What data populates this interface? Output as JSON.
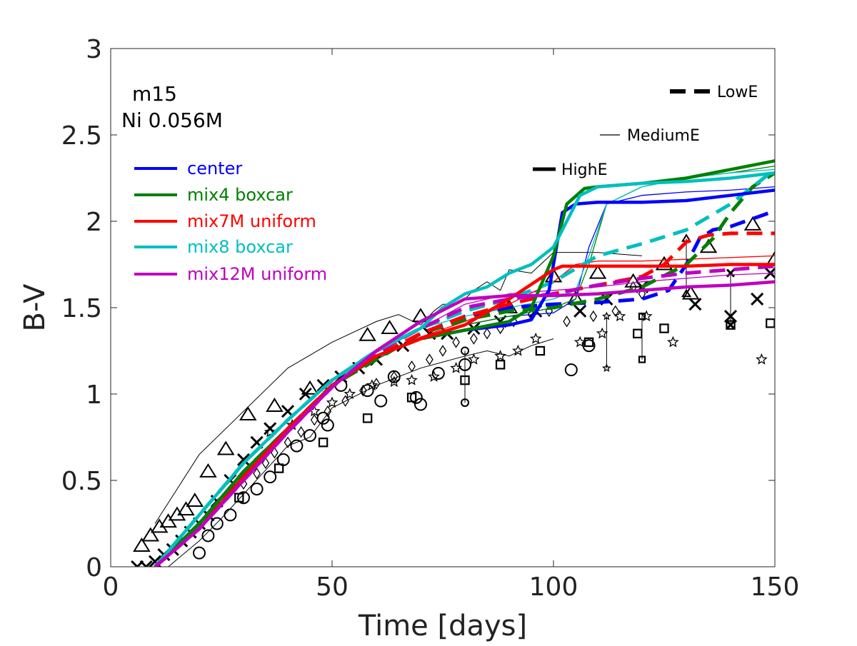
{
  "chart_data": {
    "type": "line",
    "xlabel": "Time [days]",
    "ylabel": "B-V",
    "xlim": [
      0,
      150
    ],
    "ylim": [
      0,
      3
    ],
    "xticks": [
      0,
      50,
      100,
      150
    ],
    "xtick_labels": [
      "0",
      "50",
      "100",
      "150"
    ],
    "yticks": [
      0,
      0.5,
      1,
      1.5,
      2,
      2.5,
      3
    ],
    "ytick_labels": [
      "0",
      "0.5",
      "1",
      "1.5",
      "2",
      "2.5",
      "3"
    ],
    "annotations": [
      "m15",
      "Ni 0.056M"
    ],
    "color_legend": [
      {
        "label": "center",
        "color": "#0000ff"
      },
      {
        "label": "mix4 boxcar",
        "color": "#008000"
      },
      {
        "label": "mix7M uniform",
        "color": "#ff0000"
      },
      {
        "label": "mix8 boxcar",
        "color": "#00bfbf"
      },
      {
        "label": "mix12M uniform",
        "color": "#bf00bf"
      }
    ],
    "style_legend": [
      {
        "label": "LowE",
        "style": "dashed"
      },
      {
        "label": "MediumE",
        "style": "thin"
      },
      {
        "label": "HighE",
        "style": "thick"
      }
    ],
    "series": [
      {
        "name": "center HighE",
        "color": "#0000ff",
        "style": "thick",
        "x": [
          10,
          20,
          30,
          40,
          50,
          60,
          70,
          80,
          90,
          95,
          99,
          102,
          105,
          110,
          120,
          130,
          140,
          150
        ],
        "y": [
          0,
          0.25,
          0.55,
          0.8,
          1.05,
          1.22,
          1.32,
          1.37,
          1.4,
          1.43,
          1.6,
          2.05,
          2.1,
          2.11,
          2.11,
          2.12,
          2.15,
          2.18
        ]
      },
      {
        "name": "center MediumE",
        "color": "#0000ff",
        "style": "thin",
        "x": [
          10,
          20,
          30,
          40,
          50,
          60,
          70,
          80,
          90,
          100,
          105,
          108,
          112,
          120,
          130,
          140,
          150
        ],
        "y": [
          0,
          0.25,
          0.55,
          0.8,
          1.05,
          1.2,
          1.33,
          1.4,
          1.45,
          1.47,
          1.55,
          1.85,
          2.1,
          2.15,
          2.17,
          2.18,
          2.2
        ]
      },
      {
        "name": "center LowE",
        "color": "#0000ff",
        "style": "dashed",
        "x": [
          10,
          20,
          30,
          40,
          50,
          60,
          70,
          80,
          90,
          100,
          110,
          120,
          126,
          130,
          133,
          136,
          140,
          150
        ],
        "y": [
          0,
          0.25,
          0.55,
          0.8,
          1.05,
          1.2,
          1.35,
          1.45,
          1.5,
          1.52,
          1.53,
          1.55,
          1.6,
          1.75,
          1.9,
          1.95,
          1.97,
          2.06
        ]
      },
      {
        "name": "mix4 boxcar HighE",
        "color": "#008000",
        "style": "thick",
        "x": [
          10,
          20,
          30,
          40,
          50,
          60,
          70,
          80,
          90,
          95,
          100,
          103,
          107,
          110,
          120,
          130,
          140,
          150
        ],
        "y": [
          0,
          0.25,
          0.55,
          0.8,
          1.05,
          1.22,
          1.32,
          1.37,
          1.42,
          1.5,
          1.8,
          2.1,
          2.19,
          2.2,
          2.22,
          2.25,
          2.3,
          2.35
        ]
      },
      {
        "name": "mix4 boxcar MediumE",
        "color": "#008000",
        "style": "thin",
        "x": [
          10,
          20,
          30,
          40,
          50,
          60,
          70,
          80,
          90,
          100,
          105,
          108,
          112,
          120,
          130,
          140,
          150
        ],
        "y": [
          0,
          0.25,
          0.55,
          0.8,
          1.05,
          1.2,
          1.33,
          1.4,
          1.45,
          1.5,
          1.55,
          1.75,
          2.1,
          2.2,
          2.25,
          2.28,
          2.32
        ]
      },
      {
        "name": "mix4 boxcar LowE",
        "color": "#008000",
        "style": "dashed",
        "x": [
          10,
          20,
          30,
          40,
          50,
          60,
          70,
          80,
          90,
          100,
          110,
          120,
          130,
          136,
          140,
          145,
          150
        ],
        "y": [
          0,
          0.25,
          0.55,
          0.8,
          1.05,
          1.2,
          1.35,
          1.43,
          1.48,
          1.5,
          1.55,
          1.62,
          1.75,
          1.9,
          2.05,
          2.2,
          2.28
        ]
      },
      {
        "name": "mix7M uniform HighE",
        "color": "#ff0000",
        "style": "thick",
        "x": [
          10,
          20,
          30,
          40,
          50,
          60,
          70,
          80,
          90,
          100,
          102,
          110,
          120,
          130,
          140,
          150
        ],
        "y": [
          0,
          0.22,
          0.52,
          0.8,
          1.05,
          1.22,
          1.32,
          1.4,
          1.55,
          1.72,
          1.74,
          1.74,
          1.74,
          1.74,
          1.75,
          1.75
        ]
      },
      {
        "name": "mix7M uniform MediumE",
        "color": "#ff0000",
        "style": "thin",
        "x": [
          10,
          20,
          30,
          40,
          50,
          60,
          70,
          80,
          90,
          100,
          105,
          110,
          120,
          130,
          140,
          150
        ],
        "y": [
          0,
          0.22,
          0.52,
          0.8,
          1.05,
          1.22,
          1.33,
          1.42,
          1.52,
          1.65,
          1.75,
          1.77,
          1.77,
          1.78,
          1.79,
          1.8
        ]
      },
      {
        "name": "mix7M uniform LowE",
        "color": "#ff0000",
        "style": "dashed",
        "x": [
          10,
          20,
          30,
          40,
          50,
          60,
          70,
          80,
          90,
          100,
          110,
          120,
          125,
          130,
          135,
          140,
          150
        ],
        "y": [
          0,
          0.22,
          0.52,
          0.8,
          1.05,
          1.22,
          1.35,
          1.45,
          1.52,
          1.58,
          1.63,
          1.68,
          1.75,
          1.88,
          1.92,
          1.93,
          1.93
        ]
      },
      {
        "name": "mix8 boxcar HighE",
        "color": "#00bfbf",
        "style": "thick",
        "x": [
          10,
          20,
          30,
          40,
          50,
          60,
          70,
          75,
          80,
          85,
          90,
          95,
          100,
          103,
          106,
          110,
          120,
          130,
          140,
          150
        ],
        "y": [
          0,
          0.3,
          0.6,
          0.85,
          1.08,
          1.25,
          1.38,
          1.5,
          1.58,
          1.62,
          1.7,
          1.75,
          1.85,
          2.0,
          2.15,
          2.2,
          2.22,
          2.23,
          2.25,
          2.28
        ]
      },
      {
        "name": "mix8 boxcar MediumE",
        "color": "#00bfbf",
        "style": "thin",
        "x": [
          10,
          20,
          30,
          40,
          50,
          60,
          70,
          80,
          90,
          100,
          105,
          108,
          112,
          120,
          130,
          140,
          150
        ],
        "y": [
          0,
          0.3,
          0.6,
          0.85,
          1.08,
          1.25,
          1.38,
          1.45,
          1.5,
          1.55,
          1.6,
          1.8,
          2.1,
          2.2,
          2.25,
          2.28,
          2.3
        ]
      },
      {
        "name": "mix8 boxcar LowE",
        "color": "#00bfbf",
        "style": "dashed",
        "x": [
          10,
          20,
          30,
          40,
          50,
          60,
          70,
          80,
          90,
          100,
          110,
          120,
          130,
          140,
          150
        ],
        "y": [
          0,
          0.3,
          0.6,
          0.85,
          1.08,
          1.25,
          1.38,
          1.48,
          1.55,
          1.65,
          1.8,
          1.87,
          1.95,
          2.1,
          2.3
        ]
      },
      {
        "name": "mix12M uniform HighE",
        "color": "#bf00bf",
        "style": "thick",
        "x": [
          10,
          20,
          30,
          40,
          50,
          60,
          70,
          80,
          90,
          100,
          110,
          120,
          130,
          140,
          150
        ],
        "y": [
          0,
          0.22,
          0.5,
          0.78,
          1.04,
          1.25,
          1.42,
          1.55,
          1.57,
          1.57,
          1.58,
          1.6,
          1.62,
          1.63,
          1.65
        ]
      },
      {
        "name": "mix12M uniform MediumE",
        "color": "#bf00bf",
        "style": "thin",
        "x": [
          10,
          20,
          30,
          40,
          50,
          60,
          70,
          80,
          90,
          100,
          110,
          120,
          130,
          140,
          150
        ],
        "y": [
          0,
          0.22,
          0.5,
          0.78,
          1.04,
          1.24,
          1.38,
          1.52,
          1.58,
          1.6,
          1.62,
          1.65,
          1.67,
          1.69,
          1.7
        ]
      },
      {
        "name": "mix12M uniform LowE",
        "color": "#bf00bf",
        "style": "dashed",
        "x": [
          10,
          20,
          30,
          40,
          50,
          60,
          70,
          80,
          90,
          100,
          110,
          120,
          130,
          140,
          150
        ],
        "y": [
          0,
          0.22,
          0.5,
          0.78,
          1.04,
          1.24,
          1.38,
          1.5,
          1.55,
          1.58,
          1.63,
          1.67,
          1.7,
          1.72,
          1.74
        ]
      }
    ],
    "envelope": [
      {
        "name": "upper envelope",
        "x": [
          10,
          15,
          20,
          30,
          40,
          50,
          60,
          65,
          70,
          73,
          75,
          78,
          80,
          82,
          85,
          88,
          90,
          95,
          100,
          110,
          120
        ],
        "y": [
          0.25,
          0.45,
          0.65,
          0.9,
          1.15,
          1.3,
          1.42,
          1.46,
          1.4,
          1.48,
          1.52,
          1.52,
          1.55,
          1.6,
          1.65,
          1.6,
          1.72,
          1.7,
          1.82,
          1.82,
          1.8
        ]
      },
      {
        "name": "lower envelope",
        "x": [
          13,
          20,
          25,
          30,
          40,
          45,
          50,
          60,
          70,
          80,
          85,
          90,
          95,
          100
        ],
        "y": [
          0,
          0.15,
          0.28,
          0.42,
          0.7,
          0.75,
          0.92,
          1.05,
          1.15,
          1.22,
          1.25,
          1.22,
          1.28,
          1.32
        ]
      }
    ],
    "observations": [
      {
        "marker": "triangle",
        "x": [
          7,
          9,
          11,
          13,
          15,
          17,
          19,
          22,
          26,
          31,
          37,
          45,
          58,
          63,
          70,
          90,
          100,
          105,
          110,
          118,
          125,
          131,
          135,
          145,
          150
        ],
        "y": [
          0.12,
          0.18,
          0.23,
          0.26,
          0.3,
          0.33,
          0.38,
          0.55,
          0.68,
          0.88,
          0.93,
          1.03,
          1.34,
          1.38,
          1.45,
          1.5,
          1.68,
          1.55,
          1.7,
          1.65,
          1.75,
          1.58,
          1.85,
          1.98,
          1.78
        ]
      },
      {
        "marker": "x",
        "x": [
          6,
          8,
          10,
          12,
          14,
          16,
          18,
          20,
          22,
          24,
          27,
          30,
          33,
          36,
          40,
          44,
          48,
          52,
          56,
          60,
          66,
          72,
          76,
          82,
          88,
          96,
          106,
          112,
          120,
          132,
          140,
          146,
          149
        ],
        "y": [
          0,
          0,
          0.03,
          0.07,
          0.1,
          0.15,
          0.2,
          0.25,
          0.3,
          0.38,
          0.5,
          0.62,
          0.72,
          0.8,
          0.9,
          1.0,
          1.05,
          1.1,
          1.15,
          1.2,
          1.28,
          1.35,
          1.35,
          1.38,
          1.42,
          1.48,
          1.48,
          1.55,
          1.62,
          1.52,
          1.45,
          1.55,
          1.7
        ]
      },
      {
        "marker": "circle",
        "x": [
          20,
          22,
          24,
          27,
          30,
          33,
          36,
          39,
          42,
          45,
          48,
          49,
          52,
          58,
          61,
          64,
          69,
          70,
          74,
          80,
          104,
          108
        ],
        "y": [
          0.08,
          0.18,
          0.25,
          0.3,
          0.4,
          0.45,
          0.52,
          0.62,
          0.7,
          0.76,
          0.86,
          0.82,
          1.05,
          1.02,
          0.96,
          1.1,
          0.98,
          0.94,
          1.12,
          1.17,
          1.14,
          1.28
        ]
      },
      {
        "marker": "square",
        "x": [
          29,
          38,
          48,
          58,
          68,
          80,
          88,
          97,
          108,
          119,
          125,
          140,
          149
        ],
        "y": [
          0.4,
          0.57,
          0.72,
          0.86,
          0.98,
          1.08,
          1.17,
          1.25,
          1.3,
          1.35,
          1.38,
          1.4,
          1.41
        ]
      },
      {
        "marker": "diamond",
        "x": [
          30,
          33,
          35,
          37,
          40,
          43,
          46,
          49,
          53,
          57,
          60,
          64,
          68,
          72,
          75,
          78,
          82,
          85,
          88,
          91,
          95,
          99,
          103,
          109,
          114,
          118,
          120
        ],
        "y": [
          0.48,
          0.54,
          0.6,
          0.66,
          0.72,
          0.78,
          0.85,
          0.9,
          0.96,
          1.02,
          1.06,
          1.1,
          1.16,
          1.2,
          1.25,
          1.3,
          1.32,
          1.35,
          1.38,
          1.42,
          1.46,
          1.48,
          1.42,
          1.45,
          1.48,
          1.62,
          1.58
        ]
      },
      {
        "marker": "star",
        "x": [
          36,
          41,
          46,
          50,
          54,
          59,
          64,
          68,
          73,
          78,
          82,
          88,
          92,
          96,
          106,
          111,
          115,
          121,
          127,
          147
        ],
        "y": [
          0.78,
          0.82,
          0.9,
          0.95,
          1.0,
          1.05,
          1.07,
          1.08,
          1.1,
          1.15,
          1.2,
          1.22,
          1.25,
          1.32,
          1.3,
          1.35,
          1.45,
          1.45,
          1.3,
          1.2
        ]
      }
    ],
    "error_bars": [
      {
        "x": 80,
        "ylow": 0.95,
        "yhigh": 1.25,
        "marker": "circle"
      },
      {
        "x": 112,
        "ylow": 1.15,
        "yhigh": 1.45,
        "marker": "star"
      },
      {
        "x": 120,
        "ylow": 1.2,
        "yhigh": 1.45,
        "marker": "square"
      },
      {
        "x": 130,
        "ylow": 1.58,
        "yhigh": 1.9,
        "marker": "triangle"
      },
      {
        "x": 140,
        "ylow": 1.4,
        "yhigh": 1.7,
        "marker": "x"
      }
    ]
  }
}
